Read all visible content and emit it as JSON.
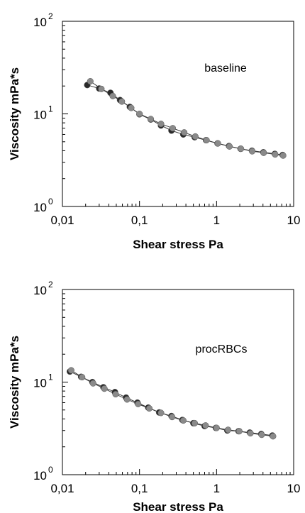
{
  "chart_data": [
    {
      "type": "scatter",
      "title": "",
      "xlabel": "Shear stress Pa",
      "ylabel": "Viscosity mPa*s",
      "xscale": "log",
      "yscale": "log",
      "xlim": [
        0.01,
        10
      ],
      "ylim": [
        1,
        100
      ],
      "xticks": [
        {
          "value": 0.01,
          "label": "0,01"
        },
        {
          "value": 0.1,
          "label": "0,1"
        },
        {
          "value": 1,
          "label": "1"
        },
        {
          "value": 10,
          "label": "10"
        }
      ],
      "yticks": [
        {
          "value": 1,
          "base": "10",
          "exp": "0"
        },
        {
          "value": 10,
          "base": "10",
          "exp": "1"
        },
        {
          "value": 100,
          "base": "10",
          "exp": "2"
        }
      ],
      "annotation": "baseline",
      "grid": false,
      "series": [
        {
          "color": "#2a2a2a",
          "x": [
            0.021,
            0.03,
            0.042,
            0.056,
            0.075,
            0.1,
            0.14,
            0.19,
            0.26,
            0.37,
            0.52,
            0.73,
            1.03,
            1.45,
            2.05,
            2.88,
            4.05,
            5.7,
            7.2
          ],
          "y": [
            20.5,
            18.8,
            16.9,
            14.1,
            11.9,
            9.9,
            8.7,
            7.5,
            6.6,
            6.0,
            5.6,
            5.2,
            4.8,
            4.5,
            4.2,
            4.0,
            3.85,
            3.7,
            3.6
          ]
        },
        {
          "color": "#8a8a8a",
          "x": [
            0.023,
            0.032,
            0.045,
            0.059,
            0.078,
            0.1,
            0.14,
            0.19,
            0.27,
            0.38,
            0.53,
            0.74,
            1.04,
            1.47,
            2.07,
            2.9,
            4.08,
            5.75,
            7.3
          ],
          "y": [
            22.5,
            18.6,
            15.6,
            13.6,
            11.6,
            10.0,
            8.8,
            7.8,
            7.0,
            6.3,
            5.7,
            5.2,
            4.8,
            4.45,
            4.2,
            3.95,
            3.8,
            3.65,
            3.55
          ]
        }
      ]
    },
    {
      "type": "scatter",
      "title": "",
      "xlabel": "Shear stress Pa",
      "ylabel": "Viscosity mPa*s",
      "xscale": "log",
      "yscale": "log",
      "xlim": [
        0.01,
        10
      ],
      "ylim": [
        1,
        100
      ],
      "xticks": [
        {
          "value": 0.01,
          "label": "0,01"
        },
        {
          "value": 0.1,
          "label": "0,1"
        },
        {
          "value": 1,
          "label": "1"
        },
        {
          "value": 10,
          "label": "10"
        }
      ],
      "yticks": [
        {
          "value": 1,
          "base": "10",
          "exp": "0"
        },
        {
          "value": 10,
          "base": "10",
          "exp": "1"
        },
        {
          "value": 100,
          "base": "10",
          "exp": "2"
        }
      ],
      "annotation": "procRBCs",
      "grid": false,
      "series": [
        {
          "color": "#2a2a2a",
          "x": [
            0.0125,
            0.0175,
            0.0245,
            0.034,
            0.048,
            0.067,
            0.094,
            0.13,
            0.18,
            0.26,
            0.36,
            0.5,
            0.7,
            0.98,
            1.38,
            1.93,
            2.7,
            3.8,
            5.3
          ],
          "y": [
            13.0,
            11.4,
            10.0,
            8.8,
            7.8,
            6.8,
            6.0,
            5.3,
            4.7,
            4.3,
            3.9,
            3.6,
            3.35,
            3.2,
            3.0,
            2.95,
            2.85,
            2.75,
            2.65
          ]
        },
        {
          "color": "#8a8a8a",
          "x": [
            0.013,
            0.018,
            0.025,
            0.035,
            0.049,
            0.069,
            0.096,
            0.134,
            0.19,
            0.265,
            0.37,
            0.52,
            0.72,
            1.0,
            1.41,
            1.97,
            2.75,
            3.85,
            5.4
          ],
          "y": [
            13.4,
            11.3,
            9.7,
            8.5,
            7.4,
            6.5,
            5.8,
            5.2,
            4.65,
            4.2,
            3.85,
            3.6,
            3.4,
            3.2,
            3.05,
            2.95,
            2.8,
            2.7,
            2.6
          ]
        }
      ]
    }
  ]
}
